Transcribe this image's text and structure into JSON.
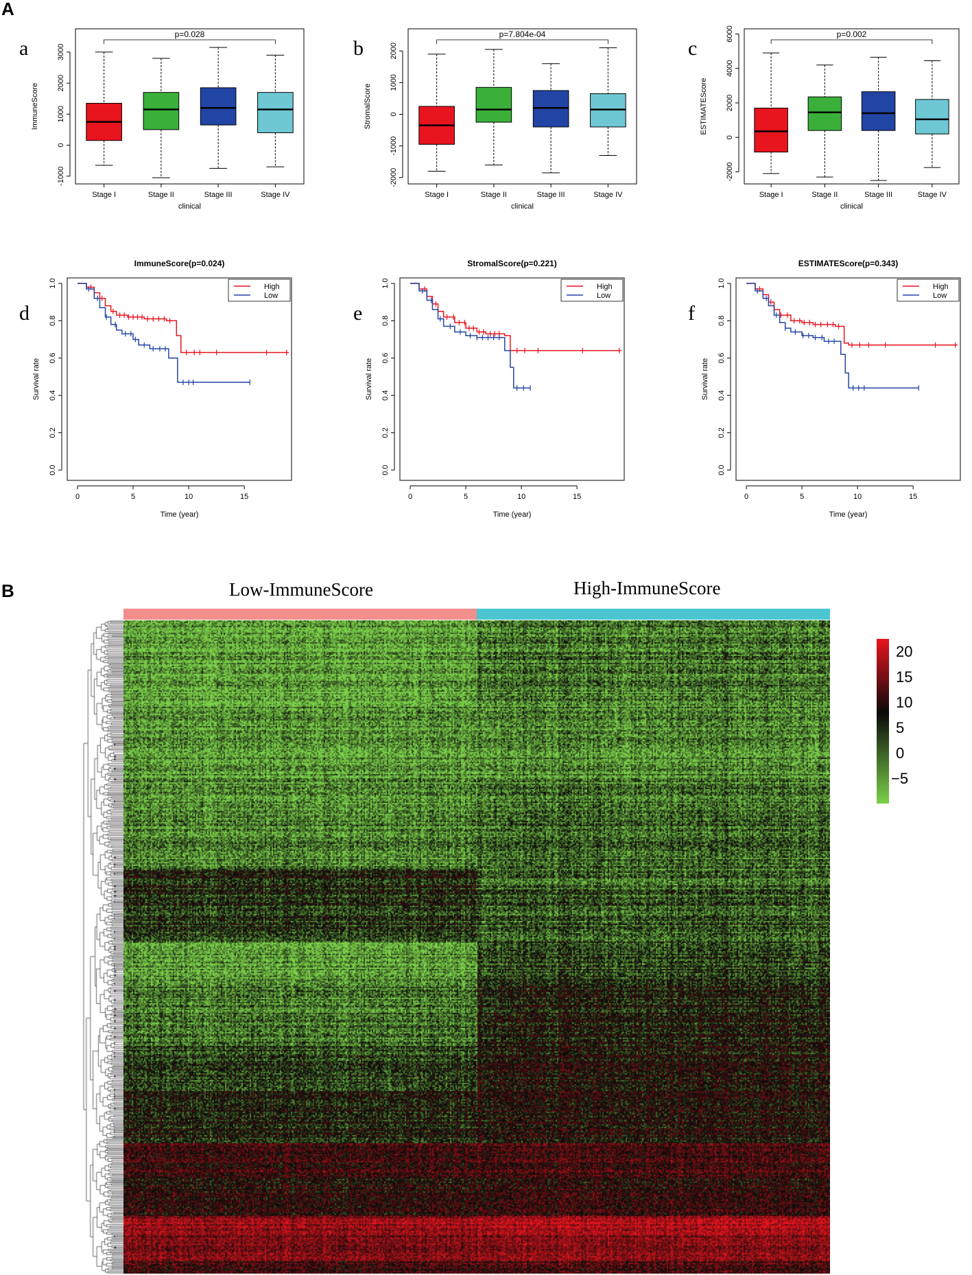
{
  "panel_labels": {
    "A": "A",
    "B": "B"
  },
  "chart_data": [
    {
      "id": "a",
      "type": "box",
      "letter": "a",
      "title": "",
      "xlabel": "clinical",
      "ylabel": "ImmuneScore",
      "categories": [
        "Stage I",
        "Stage II",
        "Stage III",
        "Stage IV"
      ],
      "colors": [
        "#e8141e",
        "#3ab03a",
        "#2245a5",
        "#6ec8d4"
      ],
      "ylim": [
        -1250,
        3750
      ],
      "yticks": [
        -1000,
        0,
        1000,
        2000,
        3000
      ],
      "pvalue": "p=0.028",
      "boxes": [
        {
          "min": -650,
          "q1": 150,
          "median": 750,
          "q3": 1350,
          "max": 3000
        },
        {
          "min": -1050,
          "q1": 500,
          "median": 1150,
          "q3": 1700,
          "max": 2800
        },
        {
          "min": -750,
          "q1": 650,
          "median": 1200,
          "q3": 1850,
          "max": 3150
        },
        {
          "min": -700,
          "q1": 400,
          "median": 1150,
          "q3": 1700,
          "max": 2900
        }
      ]
    },
    {
      "id": "b",
      "type": "box",
      "letter": "b",
      "title": "",
      "xlabel": "clinical",
      "ylabel": "StromalScore",
      "categories": [
        "Stage I",
        "Stage II",
        "Stage III",
        "Stage IV"
      ],
      "colors": [
        "#e8141e",
        "#3ab03a",
        "#2245a5",
        "#6ec8d4"
      ],
      "ylim": [
        -2200,
        2700
      ],
      "yticks": [
        -2000,
        -1000,
        0,
        1000,
        2000
      ],
      "pvalue": "p=7.804e-04",
      "boxes": [
        {
          "min": -1800,
          "q1": -950,
          "median": -350,
          "q3": 250,
          "max": 1900
        },
        {
          "min": -1600,
          "q1": -250,
          "median": 150,
          "q3": 850,
          "max": 2050
        },
        {
          "min": -1850,
          "q1": -400,
          "median": 200,
          "q3": 750,
          "max": 1600
        },
        {
          "min": -1300,
          "q1": -400,
          "median": 150,
          "q3": 650,
          "max": 2100
        }
      ]
    },
    {
      "id": "c",
      "type": "box",
      "letter": "c",
      "title": "",
      "xlabel": "clinical",
      "ylabel": "ESTIMATEScore",
      "categories": [
        "Stage I",
        "Stage II",
        "Stage III",
        "Stage IV"
      ],
      "colors": [
        "#e8141e",
        "#3ab03a",
        "#2245a5",
        "#6ec8d4"
      ],
      "ylim": [
        -2700,
        6300
      ],
      "yticks": [
        -2000,
        0,
        2000,
        4000,
        6000
      ],
      "pvalue": "p=0.002",
      "boxes": [
        {
          "min": -2100,
          "q1": -850,
          "median": 350,
          "q3": 1700,
          "max": 4900
        },
        {
          "min": -2300,
          "q1": 400,
          "median": 1450,
          "q3": 2350,
          "max": 4200
        },
        {
          "min": -2500,
          "q1": 400,
          "median": 1400,
          "q3": 2650,
          "max": 4650
        },
        {
          "min": -1750,
          "q1": 200,
          "median": 1050,
          "q3": 2200,
          "max": 4450
        }
      ]
    },
    {
      "id": "d",
      "type": "survival",
      "letter": "d",
      "title": "ImmuneScore(p=0.024)",
      "xlabel": "Time (year)",
      "ylabel": "Survival rate",
      "xlim": [
        0,
        19
      ],
      "xticks": [
        0,
        5,
        10,
        15
      ],
      "ylim": [
        0,
        1
      ],
      "yticks": [
        0.0,
        0.2,
        0.4,
        0.6,
        0.8,
        1.0
      ],
      "legend": [
        "High",
        "Low"
      ],
      "legend_position": "top-right",
      "series": [
        {
          "name": "High",
          "color": "#e8141e",
          "steps": [
            [
              0,
              1.0
            ],
            [
              0.8,
              0.98
            ],
            [
              1.5,
              0.95
            ],
            [
              2.0,
              0.92
            ],
            [
              2.5,
              0.88
            ],
            [
              3.0,
              0.85
            ],
            [
              3.5,
              0.83
            ],
            [
              4.5,
              0.82
            ],
            [
              6.0,
              0.81
            ],
            [
              8.0,
              0.8
            ],
            [
              8.9,
              0.72
            ],
            [
              9.3,
              0.63
            ],
            [
              19.0,
              0.63
            ]
          ],
          "censors": [
            1.2,
            2.2,
            3.2,
            3.8,
            4.2,
            4.6,
            5.0,
            5.4,
            5.8,
            6.3,
            6.8,
            7.3,
            7.8,
            8.3,
            9.8,
            10.5,
            11.0,
            12.5,
            17.0,
            18.8
          ]
        },
        {
          "name": "Low",
          "color": "#2245a5",
          "steps": [
            [
              0,
              1.0
            ],
            [
              0.8,
              0.97
            ],
            [
              1.5,
              0.92
            ],
            [
              2.0,
              0.87
            ],
            [
              2.5,
              0.82
            ],
            [
              3.0,
              0.78
            ],
            [
              3.5,
              0.75
            ],
            [
              4.0,
              0.73
            ],
            [
              5.0,
              0.7
            ],
            [
              5.5,
              0.67
            ],
            [
              6.5,
              0.65
            ],
            [
              8.2,
              0.6
            ],
            [
              9.0,
              0.47
            ],
            [
              15.5,
              0.47
            ]
          ],
          "censors": [
            1.0,
            1.8,
            2.6,
            3.4,
            4.3,
            4.8,
            5.2,
            6.0,
            6.8,
            7.4,
            7.9,
            9.5,
            10.0,
            10.4,
            15.5
          ]
        }
      ]
    },
    {
      "id": "e",
      "type": "survival",
      "letter": "e",
      "title": "StromalScore(p=0.221)",
      "xlabel": "Time (year)",
      "ylabel": "Survival rate",
      "xlim": [
        0,
        19
      ],
      "xticks": [
        0,
        5,
        10,
        15
      ],
      "ylim": [
        0,
        1
      ],
      "yticks": [
        0.0,
        0.2,
        0.4,
        0.6,
        0.8,
        1.0
      ],
      "legend": [
        "High",
        "Low"
      ],
      "legend_position": "top-right",
      "series": [
        {
          "name": "High",
          "color": "#e8141e",
          "steps": [
            [
              0,
              1.0
            ],
            [
              0.8,
              0.97
            ],
            [
              1.5,
              0.93
            ],
            [
              2.0,
              0.89
            ],
            [
              2.5,
              0.85
            ],
            [
              3.0,
              0.82
            ],
            [
              4.0,
              0.79
            ],
            [
              5.0,
              0.76
            ],
            [
              6.0,
              0.74
            ],
            [
              6.8,
              0.73
            ],
            [
              8.5,
              0.72
            ],
            [
              9.0,
              0.64
            ],
            [
              19.0,
              0.64
            ]
          ],
          "censors": [
            1.3,
            2.3,
            3.3,
            3.9,
            4.4,
            4.9,
            5.3,
            5.7,
            6.2,
            6.6,
            7.2,
            7.6,
            8.0,
            9.6,
            10.3,
            11.5,
            15.5,
            18.8
          ]
        },
        {
          "name": "Low",
          "color": "#2245a5",
          "steps": [
            [
              0,
              1.0
            ],
            [
              0.8,
              0.96
            ],
            [
              1.5,
              0.91
            ],
            [
              2.0,
              0.86
            ],
            [
              2.5,
              0.81
            ],
            [
              3.0,
              0.77
            ],
            [
              4.0,
              0.74
            ],
            [
              5.0,
              0.72
            ],
            [
              6.0,
              0.71
            ],
            [
              8.5,
              0.64
            ],
            [
              9.0,
              0.55
            ],
            [
              9.3,
              0.44
            ],
            [
              10.8,
              0.44
            ]
          ],
          "censors": [
            1.1,
            1.9,
            2.7,
            3.6,
            4.5,
            5.4,
            6.0,
            6.5,
            7.0,
            7.5,
            8.0,
            9.6,
            10.2,
            10.8
          ]
        }
      ]
    },
    {
      "id": "f",
      "type": "survival",
      "letter": "f",
      "title": "ESTIMATEScore(p=0.343)",
      "xlabel": "Time (year)",
      "ylabel": "Survival rate",
      "xlim": [
        0,
        19
      ],
      "xticks": [
        0,
        5,
        10,
        15
      ],
      "ylim": [
        0,
        1
      ],
      "yticks": [
        0.0,
        0.2,
        0.4,
        0.6,
        0.8,
        1.0
      ],
      "legend": [
        "High",
        "Low"
      ],
      "legend_position": "top-right",
      "series": [
        {
          "name": "High",
          "color": "#e8141e",
          "steps": [
            [
              0,
              1.0
            ],
            [
              0.8,
              0.97
            ],
            [
              1.5,
              0.94
            ],
            [
              2.0,
              0.9
            ],
            [
              2.5,
              0.86
            ],
            [
              3.0,
              0.83
            ],
            [
              4.0,
              0.8
            ],
            [
              5.0,
              0.79
            ],
            [
              6.0,
              0.78
            ],
            [
              8.0,
              0.77
            ],
            [
              8.8,
              0.68
            ],
            [
              9.2,
              0.67
            ],
            [
              19.0,
              0.67
            ]
          ],
          "censors": [
            1.2,
            2.2,
            3.1,
            3.7,
            4.3,
            4.8,
            5.2,
            5.7,
            6.2,
            6.7,
            7.3,
            7.8,
            8.3,
            9.5,
            10.2,
            11.0,
            12.5,
            17.0,
            18.8
          ]
        },
        {
          "name": "Low",
          "color": "#2245a5",
          "steps": [
            [
              0,
              1.0
            ],
            [
              0.8,
              0.96
            ],
            [
              1.5,
              0.92
            ],
            [
              2.0,
              0.88
            ],
            [
              2.5,
              0.83
            ],
            [
              3.0,
              0.79
            ],
            [
              3.5,
              0.76
            ],
            [
              4.0,
              0.74
            ],
            [
              5.0,
              0.72
            ],
            [
              6.0,
              0.71
            ],
            [
              7.0,
              0.69
            ],
            [
              8.5,
              0.62
            ],
            [
              8.9,
              0.52
            ],
            [
              9.2,
              0.44
            ],
            [
              15.5,
              0.44
            ]
          ],
          "censors": [
            1.0,
            1.8,
            2.7,
            3.5,
            4.4,
            5.1,
            5.6,
            6.2,
            6.8,
            7.4,
            7.9,
            9.6,
            10.1,
            10.6,
            15.5
          ]
        }
      ]
    },
    {
      "id": "heatmap",
      "type": "heatmap",
      "groups": [
        "Low-ImmuneScore",
        "High-ImmuneScore"
      ],
      "group_colors": [
        "#f28e8b",
        "#4bc6d0"
      ],
      "color_scale": {
        "min": -8,
        "max": 22,
        "colors": [
          "#7cd04a",
          "#0a0a0a",
          "#e8141e"
        ],
        "ticks": [
          "20",
          "15",
          "10",
          "5",
          "0",
          "−5"
        ]
      }
    }
  ]
}
